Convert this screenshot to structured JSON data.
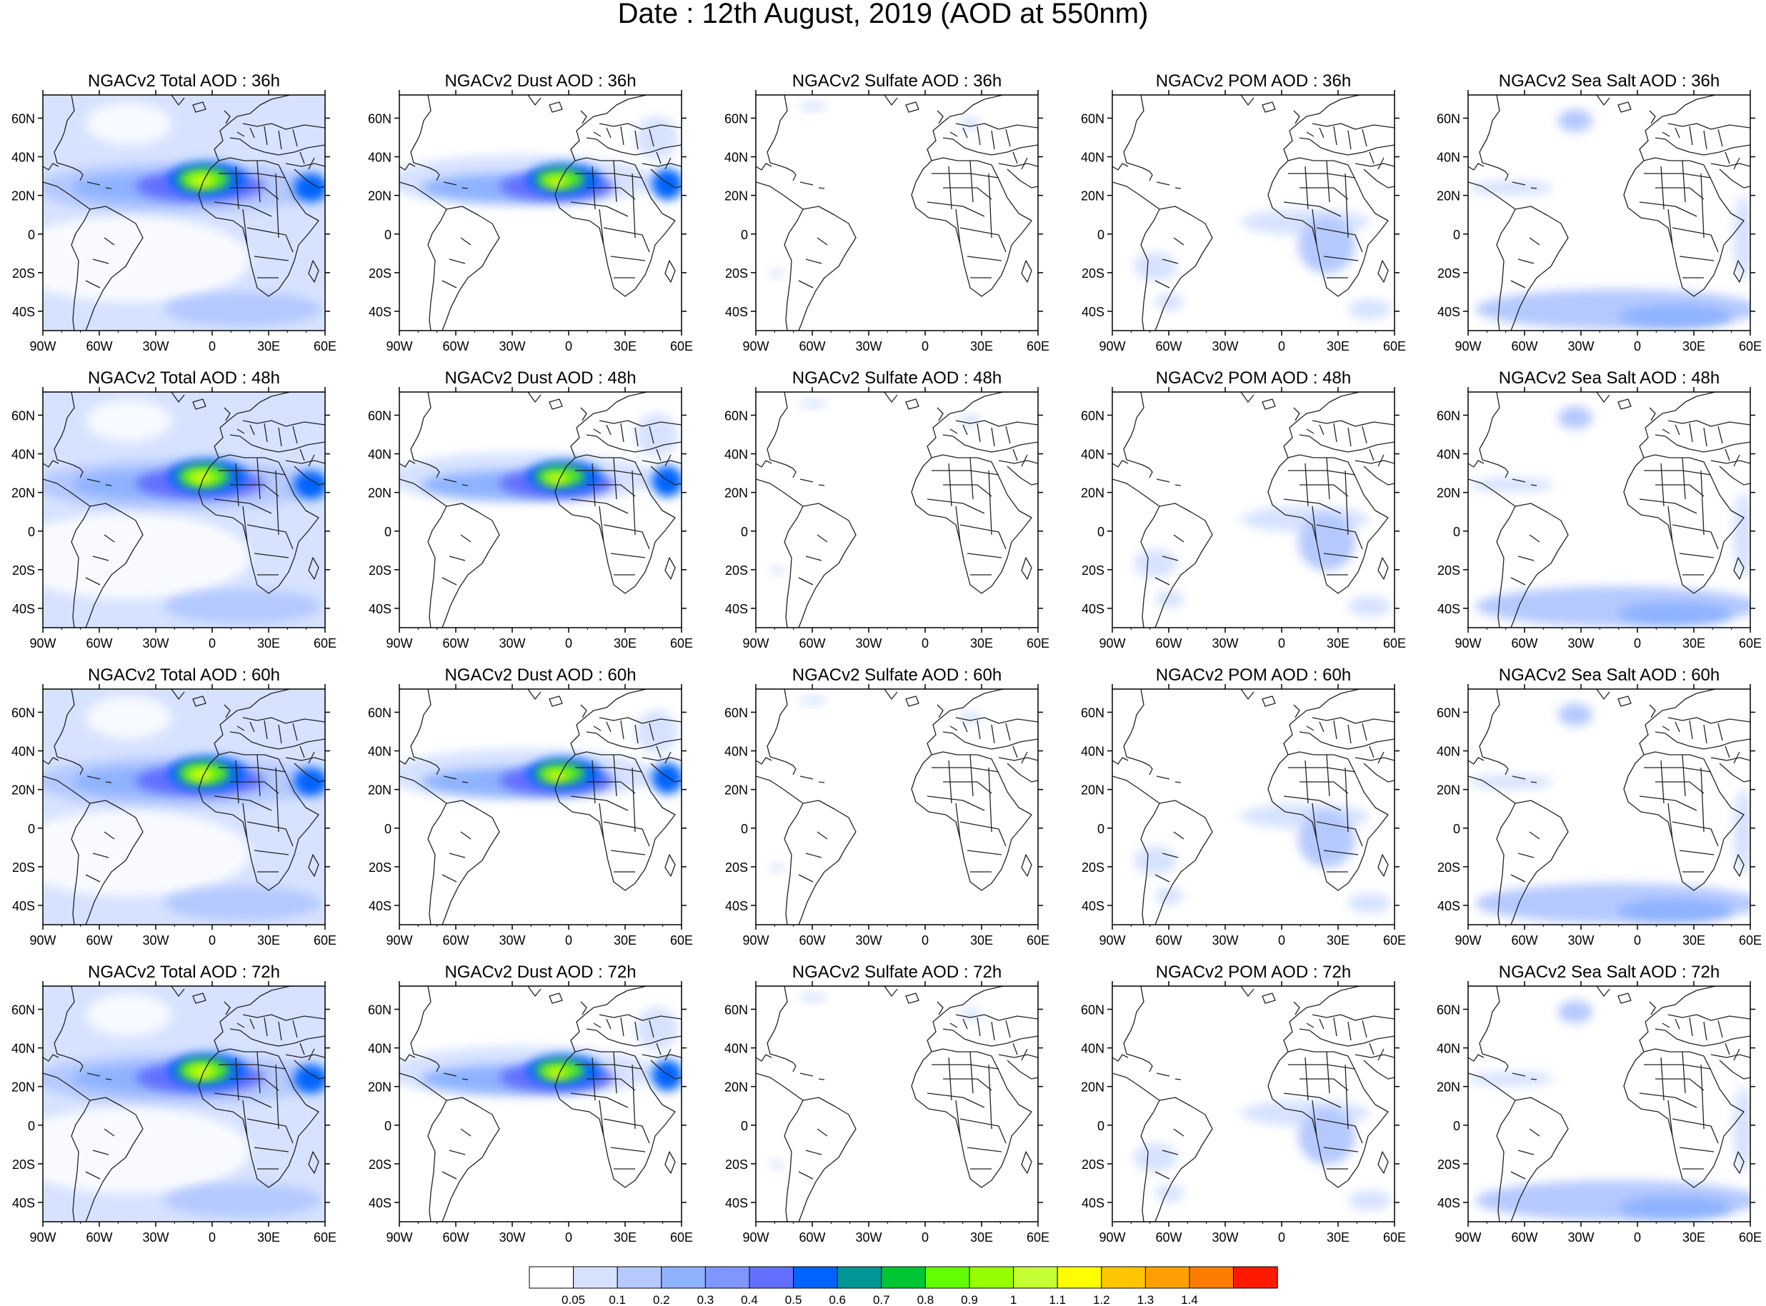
{
  "figure": {
    "title": "Date : 12th August, 2019 (AOD at 550nm)"
  },
  "axes": {
    "lat_labels": [
      "60N",
      "40N",
      "20N",
      "0",
      "20S",
      "40S"
    ],
    "lon_labels": [
      "90W",
      "60W",
      "30W",
      "0",
      "30E",
      "60E"
    ],
    "lat_range": [
      -50,
      72
    ],
    "lon_range": [
      -90,
      60
    ]
  },
  "rows": [
    {
      "lead": "36h",
      "panels": [
        {
          "title": "NGACv2 Total AOD : 36h",
          "species": "total"
        },
        {
          "title": "NGACv2 Dust AOD : 36h",
          "species": "dust"
        },
        {
          "title": "NGACv2 Sulfate AOD : 36h",
          "species": "sulfate"
        },
        {
          "title": "NGACv2 POM AOD : 36h",
          "species": "pom"
        },
        {
          "title": "NGACv2 Sea Salt AOD : 36h",
          "species": "seasalt"
        }
      ]
    },
    {
      "lead": "48h",
      "panels": [
        {
          "title": "NGACv2 Total AOD : 48h",
          "species": "total"
        },
        {
          "title": "NGACv2 Dust AOD : 48h",
          "species": "dust"
        },
        {
          "title": "NGACv2 Sulfate AOD : 48h",
          "species": "sulfate"
        },
        {
          "title": "NGACv2 POM AOD : 48h",
          "species": "pom"
        },
        {
          "title": "NGACv2 Sea Salt AOD : 48h",
          "species": "seasalt"
        }
      ]
    },
    {
      "lead": "60h",
      "panels": [
        {
          "title": "NGACv2 Total AOD : 60h",
          "species": "total"
        },
        {
          "title": "NGACv2 Dust AOD : 60h",
          "species": "dust"
        },
        {
          "title": "NGACv2 Sulfate AOD : 60h",
          "species": "sulfate"
        },
        {
          "title": "NGACv2 POM AOD : 60h",
          "species": "pom"
        },
        {
          "title": "NGACv2 Sea Salt AOD : 60h",
          "species": "seasalt"
        }
      ]
    },
    {
      "lead": "72h",
      "panels": [
        {
          "title": "NGACv2 Total AOD : 72h",
          "species": "total"
        },
        {
          "title": "NGACv2 Dust AOD : 72h",
          "species": "dust"
        },
        {
          "title": "NGACv2 Sulfate AOD : 72h",
          "species": "sulfate"
        },
        {
          "title": "NGACv2 POM AOD : 72h",
          "species": "pom"
        },
        {
          "title": "NGACv2 Sea Salt  AOD : 72h",
          "species": "seasalt"
        }
      ]
    }
  ],
  "colorbar": {
    "labels": [
      "0.05",
      "0.1",
      "0.2",
      "0.3",
      "0.4",
      "0.5",
      "0.6",
      "0.7",
      "0.8",
      "0.9",
      "1",
      "1.1",
      "1.2",
      "1.3",
      "1.4"
    ],
    "colors": [
      "#ffffff",
      "#d6e2ff",
      "#b5c9ff",
      "#8eb2ff",
      "#7f96ff",
      "#6370ff",
      "#0063ff",
      "#009696",
      "#00c633",
      "#63ff00",
      "#96ff00",
      "#c6ff33",
      "#ffff00",
      "#ffc600",
      "#ffa000",
      "#ff7c00",
      "#ff1900"
    ]
  }
}
